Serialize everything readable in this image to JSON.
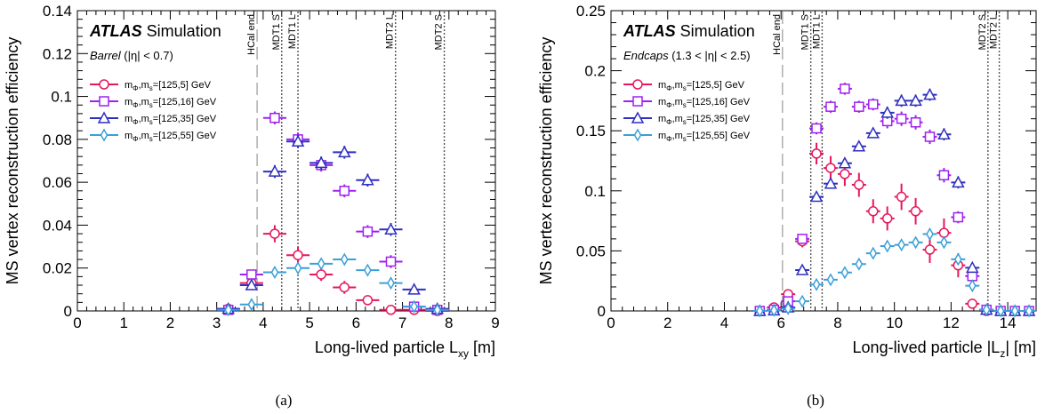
{
  "experiment": "ATLAS",
  "experiment_suffix": "Simulation",
  "chart_data": [
    {
      "type": "scatter",
      "panel_caption": "(a)",
      "region_label": "Barrel",
      "region_cut": "(|η| < 0.7)",
      "xlabel": "Long-lived particle L",
      "xlabel_sub": "xy",
      "xlabel_unit": " [m]",
      "ylabel": "MS vertex reconstruction efficiency",
      "xlim": [
        0,
        9
      ],
      "ylim": [
        0,
        0.14
      ],
      "xticks": [
        0,
        1,
        2,
        3,
        4,
        5,
        6,
        7,
        8,
        9
      ],
      "yticks": [
        0,
        0.02,
        0.04,
        0.06,
        0.08,
        0.1,
        0.12,
        0.14
      ],
      "ytick_labels": [
        "0",
        "0.02",
        "0.04",
        "0.06",
        "0.08",
        "0.1",
        "0.12",
        "0.14"
      ],
      "xerr": 0.25,
      "legend_position": "top-left",
      "boundaries": [
        {
          "label": "HCal end",
          "x": 3.87,
          "style": "long-dash"
        },
        {
          "label": "MDT1 S",
          "x": 4.4,
          "style": "dotted"
        },
        {
          "label": "MDT1 L",
          "x": 4.75,
          "style": "dotted"
        },
        {
          "label": "MDT2 L",
          "x": 6.85,
          "style": "dotted"
        },
        {
          "label": "MDT2 S",
          "x": 7.9,
          "style": "dotted"
        }
      ],
      "series": [
        {
          "name": "mΦ,ms=[125,5] GeV",
          "label_main": "m",
          "label_sub1": "Φ",
          "label_mid": ",m",
          "label_sub2": "s",
          "label_tail": "=[125,5] GeV",
          "color": "#e8175d",
          "marker": "circle",
          "x": [
            3.25,
            3.75,
            4.25,
            4.75,
            5.25,
            5.75,
            6.25,
            6.75,
            7.25,
            7.75
          ],
          "y": [
            0.001,
            0.013,
            0.036,
            0.026,
            0.017,
            0.011,
            0.005,
            0.0005,
            0.0005,
            0.0
          ],
          "yerr": [
            0.001,
            0.002,
            0.004,
            0.004,
            0.003,
            0.003,
            0.002,
            0.001,
            0.001,
            0.001
          ]
        },
        {
          "name": "mΦ,ms=[125,16] GeV",
          "label_main": "m",
          "label_sub1": "Φ",
          "label_mid": ",m",
          "label_sub2": "s",
          "label_tail": "=[125,16] GeV",
          "color": "#a020f0",
          "marker": "square",
          "x": [
            3.25,
            3.75,
            4.25,
            4.75,
            5.25,
            5.75,
            6.25,
            6.75,
            7.25,
            7.75
          ],
          "y": [
            0.0005,
            0.017,
            0.09,
            0.08,
            0.068,
            0.056,
            0.037,
            0.023,
            0.002,
            0.0005
          ],
          "yerr": [
            0.001,
            0.002,
            0.003,
            0.003,
            0.003,
            0.003,
            0.003,
            0.003,
            0.001,
            0.001
          ]
        },
        {
          "name": "mΦ,ms=[125,35] GeV",
          "label_main": "m",
          "label_sub1": "Φ",
          "label_mid": ",m",
          "label_sub2": "s",
          "label_tail": "=[125,35] GeV",
          "color": "#2f2fbf",
          "marker": "triangle",
          "x": [
            3.25,
            3.75,
            4.25,
            4.75,
            5.25,
            5.75,
            6.25,
            6.75,
            7.25,
            7.75
          ],
          "y": [
            0.001,
            0.012,
            0.065,
            0.079,
            0.069,
            0.074,
            0.061,
            0.038,
            0.01,
            0.001
          ],
          "yerr": [
            0.001,
            0.002,
            0.003,
            0.003,
            0.003,
            0.003,
            0.003,
            0.003,
            0.002,
            0.001
          ]
        },
        {
          "name": "mΦ,ms=[125,55] GeV",
          "label_main": "m",
          "label_sub1": "Φ",
          "label_mid": ",m",
          "label_sub2": "s",
          "label_tail": "=[125,55] GeV",
          "color": "#3aa0d8",
          "marker": "diamond",
          "x": [
            3.25,
            3.75,
            4.25,
            4.75,
            5.25,
            5.75,
            6.25,
            6.75,
            7.25,
            7.75
          ],
          "y": [
            0.0005,
            0.003,
            0.018,
            0.02,
            0.022,
            0.024,
            0.019,
            0.013,
            0.002,
            0.0005
          ],
          "yerr": [
            0.001,
            0.001,
            0.002,
            0.002,
            0.002,
            0.002,
            0.002,
            0.002,
            0.001,
            0.001
          ]
        }
      ]
    },
    {
      "type": "scatter",
      "panel_caption": "(b)",
      "region_label": "Endcaps",
      "region_cut": "(1.3 < |η| < 2.5)",
      "xlabel": "Long-lived particle |L",
      "xlabel_sub": "z",
      "xlabel_unit": "| [m]",
      "ylabel": "MS vertex reconstruction efficiency",
      "xlim": [
        0,
        15
      ],
      "ylim": [
        0,
        0.25
      ],
      "xticks": [
        0,
        2,
        4,
        6,
        8,
        10,
        12,
        14
      ],
      "yticks": [
        0,
        0.05,
        0.1,
        0.15,
        0.2,
        0.25
      ],
      "ytick_labels": [
        "0",
        "0.05",
        "0.1",
        "0.15",
        "0.2",
        "0.25"
      ],
      "xerr": 0.25,
      "legend_position": "top-left",
      "boundaries": [
        {
          "label": "HCal end",
          "x": 6.05,
          "style": "long-dash"
        },
        {
          "label": "MDT1 S",
          "x": 7.05,
          "style": "dotted"
        },
        {
          "label": "MDT1 L",
          "x": 7.45,
          "style": "dotted"
        },
        {
          "label": "MDT2 S",
          "x": 13.3,
          "style": "dotted"
        },
        {
          "label": "MDT2 L",
          "x": 13.7,
          "style": "dotted"
        }
      ],
      "series": [
        {
          "name": "mΦ,ms=[125,5] GeV",
          "label_main": "m",
          "label_sub1": "Φ",
          "label_mid": ",m",
          "label_sub2": "s",
          "label_tail": "=[125,5] GeV",
          "color": "#e8175d",
          "marker": "circle",
          "x": [
            5.25,
            5.75,
            6.25,
            6.75,
            7.25,
            7.75,
            8.25,
            8.75,
            9.25,
            9.75,
            10.25,
            10.75,
            11.25,
            11.75,
            12.25,
            12.75,
            13.25,
            13.75,
            14.25,
            14.75
          ],
          "y": [
            0.0,
            0.003,
            0.014,
            0.058,
            0.131,
            0.119,
            0.114,
            0.105,
            0.083,
            0.077,
            0.095,
            0.083,
            0.051,
            0.065,
            0.038,
            0.006,
            0.0,
            0.0,
            0.0,
            0.0
          ],
          "yerr": [
            0.001,
            0.002,
            0.003,
            0.005,
            0.009,
            0.01,
            0.01,
            0.01,
            0.01,
            0.01,
            0.011,
            0.011,
            0.011,
            0.012,
            0.01,
            0.004,
            0.001,
            0.001,
            0.001,
            0.001
          ]
        },
        {
          "name": "mΦ,ms=[125,16] GeV",
          "label_main": "m",
          "label_sub1": "Φ",
          "label_mid": ",m",
          "label_sub2": "s",
          "label_tail": "=[125,16] GeV",
          "color": "#a020f0",
          "marker": "square",
          "x": [
            5.25,
            5.75,
            6.25,
            6.75,
            7.25,
            7.75,
            8.25,
            8.75,
            9.25,
            9.75,
            10.25,
            10.75,
            11.25,
            11.75,
            12.25,
            12.75,
            13.25,
            13.75,
            14.25,
            14.75
          ],
          "y": [
            0.0,
            0.001,
            0.008,
            0.06,
            0.152,
            0.17,
            0.185,
            0.17,
            0.172,
            0.158,
            0.16,
            0.157,
            0.145,
            0.113,
            0.078,
            0.029,
            0.001,
            0.0,
            0.0,
            0.0
          ],
          "yerr": [
            0.001,
            0.001,
            0.002,
            0.004,
            0.005,
            0.005,
            0.005,
            0.005,
            0.005,
            0.006,
            0.006,
            0.006,
            0.006,
            0.006,
            0.005,
            0.004,
            0.001,
            0.001,
            0.001,
            0.001
          ]
        },
        {
          "name": "mΦ,ms=[125,35] GeV",
          "label_main": "m",
          "label_sub1": "Φ",
          "label_mid": ",m",
          "label_sub2": "s",
          "label_tail": "=[125,35] GeV",
          "color": "#2f2fbf",
          "marker": "triangle",
          "x": [
            5.25,
            5.75,
            6.25,
            6.75,
            7.25,
            7.75,
            8.25,
            8.75,
            9.25,
            9.75,
            10.25,
            10.75,
            11.25,
            11.75,
            12.25,
            12.75,
            13.25,
            13.75,
            14.25,
            14.75
          ],
          "y": [
            0.0,
            0.0005,
            0.003,
            0.034,
            0.095,
            0.106,
            0.123,
            0.137,
            0.148,
            0.165,
            0.175,
            0.175,
            0.18,
            0.147,
            0.107,
            0.036,
            0.001,
            0.0,
            0.0,
            0.0
          ],
          "yerr": [
            0.001,
            0.001,
            0.001,
            0.003,
            0.004,
            0.004,
            0.004,
            0.004,
            0.004,
            0.005,
            0.005,
            0.005,
            0.005,
            0.005,
            0.005,
            0.004,
            0.001,
            0.001,
            0.001,
            0.001
          ]
        },
        {
          "name": "mΦ,ms=[125,55] GeV",
          "label_main": "m",
          "label_sub1": "Φ",
          "label_mid": ",m",
          "label_sub2": "s",
          "label_tail": "=[125,55] GeV",
          "color": "#3aa0d8",
          "marker": "diamond",
          "x": [
            5.25,
            5.75,
            6.25,
            6.75,
            7.25,
            7.75,
            8.25,
            8.75,
            9.25,
            9.75,
            10.25,
            10.75,
            11.25,
            11.75,
            12.25,
            12.75,
            13.25,
            13.75,
            14.25,
            14.75
          ],
          "y": [
            0.0,
            0.0005,
            0.002,
            0.008,
            0.022,
            0.026,
            0.032,
            0.039,
            0.048,
            0.054,
            0.055,
            0.057,
            0.064,
            0.057,
            0.043,
            0.021,
            0.001,
            0.0,
            0.0,
            0.0
          ],
          "yerr": [
            0.001,
            0.001,
            0.001,
            0.002,
            0.002,
            0.003,
            0.003,
            0.003,
            0.003,
            0.003,
            0.003,
            0.003,
            0.004,
            0.004,
            0.004,
            0.003,
            0.001,
            0.001,
            0.001,
            0.001
          ]
        }
      ]
    }
  ]
}
